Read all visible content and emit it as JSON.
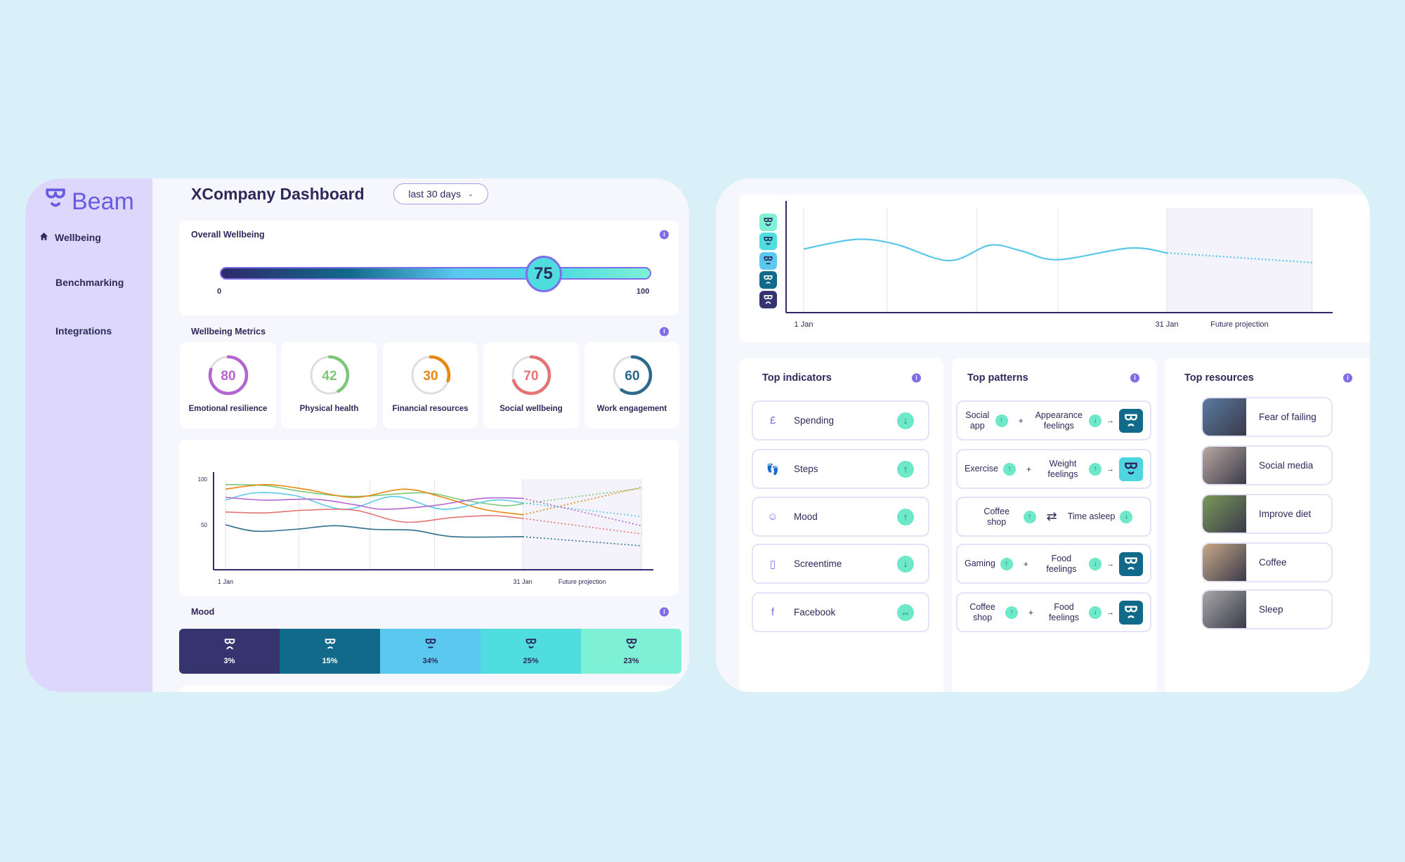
{
  "sidebar": {
    "brand": "Beam",
    "items": [
      {
        "label": "Wellbeing",
        "icon": "home-icon",
        "active": true
      },
      {
        "label": "Benchmarking"
      },
      {
        "label": "Integrations"
      }
    ]
  },
  "header": {
    "title": "XCompany Dashboard",
    "range": "last 30 days"
  },
  "overall": {
    "title": "Overall Wellbeing",
    "value": 75,
    "display": "75",
    "min": "0",
    "max": "100"
  },
  "metrics": {
    "title": "Wellbeing Metrics",
    "items": [
      {
        "label": "Emotional resilience",
        "value": 80,
        "display": "80",
        "color": "#b565d0"
      },
      {
        "label": "Physical health",
        "value": 42,
        "display": "42",
        "color": "#7cc77a"
      },
      {
        "label": "Financial resources",
        "value": 30,
        "display": "30",
        "color": "#e8870e"
      },
      {
        "label": "Social wellbeing",
        "value": 70,
        "display": "70",
        "color": "#e47474"
      },
      {
        "label": "Work engagement",
        "value": 60,
        "display": "60",
        "color": "#2b6a8c"
      }
    ]
  },
  "mood": {
    "title": "Mood",
    "segments": [
      {
        "label": "3%",
        "value": 3,
        "mood": 1,
        "color": "#36346f",
        "text": "#ffffff"
      },
      {
        "label": "15%",
        "value": 15,
        "mood": 2,
        "color": "#126a8a",
        "text": "#ffffff"
      },
      {
        "label": "34%",
        "value": 34,
        "mood": 3,
        "color": "#5bc8f0",
        "text": "#2d2a5a"
      },
      {
        "label": "25%",
        "value": 25,
        "mood": 4,
        "color": "#4fdde0",
        "text": "#2d2a5a"
      },
      {
        "label": "23%",
        "value": 23,
        "mood": 5,
        "color": "#7ef0d6",
        "text": "#2d2a5a"
      }
    ]
  },
  "chart_data": [
    {
      "type": "line",
      "title": "",
      "x_labels": [
        "1 Jan",
        "31 Jan",
        "Future projection"
      ],
      "y_ticks": [
        "100",
        "50"
      ],
      "ylim": [
        0,
        100
      ],
      "xlim": [
        1,
        43
      ],
      "projection_start": 31,
      "series": [
        {
          "name": "Physical health",
          "color": "#7cc77a",
          "x": [
            1,
            5,
            9,
            14,
            21,
            25,
            29,
            31,
            43
          ],
          "y": [
            94,
            93,
            86,
            81,
            85,
            77,
            71,
            73,
            90
          ]
        },
        {
          "name": "Financial resources",
          "color": "#e8870e",
          "x": [
            1,
            5,
            9,
            14,
            19,
            23,
            27,
            31,
            43
          ],
          "y": [
            89,
            94,
            89,
            80,
            89,
            80,
            67,
            61,
            91
          ]
        },
        {
          "name": "Mood",
          "color": "#5bc8e8",
          "x": [
            1,
            4,
            8,
            13,
            18,
            23,
            28,
            31,
            43
          ],
          "y": [
            77,
            85,
            82,
            67,
            81,
            67,
            77,
            74,
            59
          ]
        },
        {
          "name": "Emotional resilience",
          "color": "#b565d0",
          "x": [
            1,
            5,
            10,
            14,
            17,
            22,
            27,
            31,
            43
          ],
          "y": [
            80,
            77,
            78,
            72,
            67,
            71,
            79,
            79,
            49
          ]
        },
        {
          "name": "Social wellbeing",
          "color": "#e47474",
          "x": [
            1,
            5,
            9,
            14,
            19,
            24,
            28,
            31,
            43
          ],
          "y": [
            64,
            63,
            66,
            66,
            53,
            58,
            60,
            57,
            40
          ]
        },
        {
          "name": "Work engagement",
          "color": "#2e6e8c",
          "x": [
            1,
            4,
            8,
            12,
            16,
            20,
            24,
            31,
            43
          ],
          "y": [
            50,
            43,
            45,
            49,
            45,
            44,
            37,
            37,
            27
          ]
        }
      ]
    },
    {
      "type": "line",
      "title": "",
      "x_labels": [
        "1 Jan",
        "31 Jan",
        "Future projection"
      ],
      "y_levels": [
        5,
        4,
        3,
        2,
        1
      ],
      "ylim": [
        1,
        5
      ],
      "xlim": [
        1,
        43
      ],
      "projection_start": 31,
      "series": [
        {
          "name": "Mood",
          "color": "#5bc8e8",
          "x": [
            1,
            5.3,
            8.6,
            13,
            16.4,
            19,
            22,
            27.9,
            31,
            43
          ],
          "y": [
            3.6,
            4.1,
            3.85,
            3.0,
            3.8,
            3.5,
            3.05,
            3.65,
            3.4,
            2.9
          ]
        }
      ]
    }
  ],
  "mood_levels": [
    {
      "mood": 5,
      "color": "#7ef0d6"
    },
    {
      "mood": 4,
      "color": "#4fdde0"
    },
    {
      "mood": 3,
      "color": "#5bc8f0"
    },
    {
      "mood": 2,
      "color": "#126a8a"
    },
    {
      "mood": 1,
      "color": "#36346f"
    }
  ],
  "indicators": {
    "title": "Top indicators",
    "items": [
      {
        "label": "Spending",
        "icon": "£",
        "trend": "↓"
      },
      {
        "label": "Steps",
        "icon": "👣",
        "trend": "↑"
      },
      {
        "label": "Mood",
        "icon": "☺",
        "trend": "↑"
      },
      {
        "label": "Screentime",
        "icon": "▯",
        "trend": "↓"
      },
      {
        "label": "Facebook",
        "icon": "f",
        "trend": "↔"
      }
    ]
  },
  "patterns": {
    "title": "Top patterns",
    "items": [
      {
        "a": "Social app",
        "a_trend": "↑",
        "join": "+",
        "b": "Appearance feelings",
        "b_trend": "↓",
        "result": "→",
        "result_mood": 2
      },
      {
        "a": "Exercise",
        "a_trend": "↑",
        "join": "+",
        "b": "Weight feelings",
        "b_trend": "↑",
        "result": "→",
        "result_mood": 4
      },
      {
        "a": "Coffee shop",
        "a_trend": "↑",
        "join": "⇄",
        "b": "Time asleep",
        "b_trend": "↓"
      },
      {
        "a": "Gaming",
        "a_trend": "↑",
        "join": "+",
        "b": "Food feelings",
        "b_trend": "↓",
        "result": "→",
        "result_mood": 2
      },
      {
        "a": "Coffee shop",
        "a_trend": "↑",
        "join": "+",
        "b": "Food feelings",
        "b_trend": "↓",
        "result": "→",
        "result_mood": 2
      }
    ]
  },
  "resources": {
    "title": "Top resources",
    "items": [
      {
        "label": "Fear of failing",
        "thumb": "#5a7aa0"
      },
      {
        "label": "Social media",
        "thumb": "#b8a8a0"
      },
      {
        "label": "Improve diet",
        "thumb": "#7a9a5a"
      },
      {
        "label": "Coffee",
        "thumb": "#c8a888"
      },
      {
        "label": "Sleep",
        "thumb": "#a8a8a8"
      }
    ]
  },
  "info_label": "i"
}
